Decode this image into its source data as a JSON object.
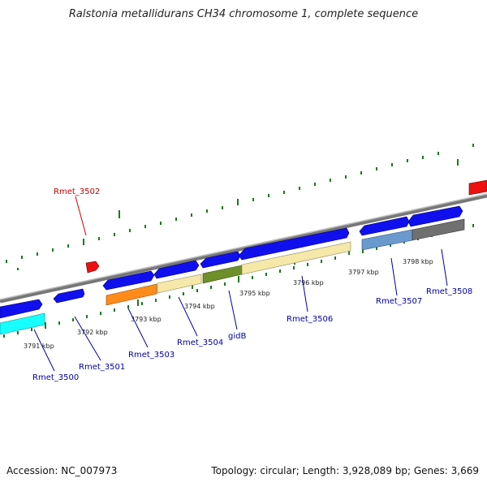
{
  "title": "Ralstonia metallidurans CH34 chromosome 1, complete sequence",
  "footer": {
    "accession": "Accession: NC_007973",
    "summary": "Topology: circular; Length: 3,928,089 bp; Genes: 3,669"
  },
  "colors": {
    "backbone": "#8c8c8c",
    "tick_green": "#1a7a1a",
    "gene_label_blue": "#0000aa",
    "gene_label_red": "#cc0000"
  },
  "scale_ticks": [
    "3791 kbp",
    "3792 kbp",
    "3793 kbp",
    "3794 kbp",
    "3795 kbp",
    "3796 kbp",
    "3797 kbp",
    "3798 kbp"
  ],
  "gene_labels": [
    {
      "text": "Rmet_3500",
      "color": "blue"
    },
    {
      "text": "Rmet_3501",
      "color": "blue"
    },
    {
      "text": "Rmet_3502",
      "color": "red"
    },
    {
      "text": "Rmet_3503",
      "color": "blue"
    },
    {
      "text": "Rmet_3504",
      "color": "blue"
    },
    {
      "text": "gidB",
      "color": "blue"
    },
    {
      "text": "Rmet_3506",
      "color": "blue"
    },
    {
      "text": "Rmet_3507",
      "color": "blue"
    },
    {
      "text": "Rmet_3508",
      "color": "blue"
    }
  ]
}
